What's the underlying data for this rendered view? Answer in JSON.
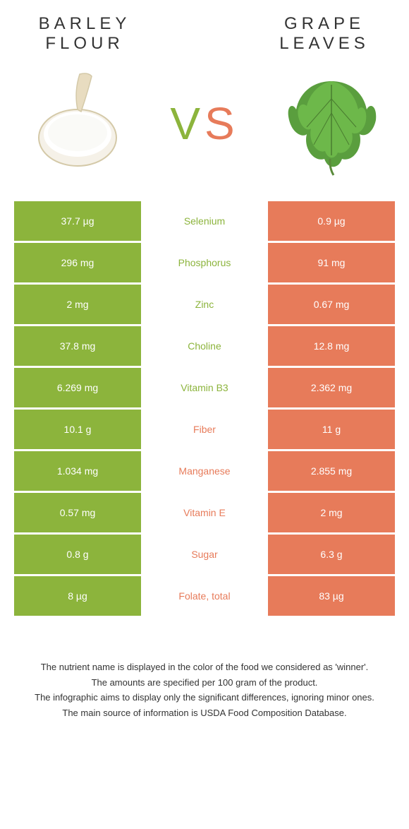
{
  "colors": {
    "left": "#8cb43c",
    "right": "#e77b5a",
    "text_dark": "#333333",
    "white": "#ffffff"
  },
  "header": {
    "left_title_l1": "Barley",
    "left_title_l2": "flour",
    "right_title_l1": "Grape",
    "right_title_l2": "leaves",
    "vs_v": "V",
    "vs_s": "S"
  },
  "rows": [
    {
      "left": "37.7 µg",
      "mid": "Selenium",
      "right": "0.9 µg",
      "winner": "left"
    },
    {
      "left": "296 mg",
      "mid": "Phosphorus",
      "right": "91 mg",
      "winner": "left"
    },
    {
      "left": "2 mg",
      "mid": "Zinc",
      "right": "0.67 mg",
      "winner": "left"
    },
    {
      "left": "37.8 mg",
      "mid": "Choline",
      "right": "12.8 mg",
      "winner": "left"
    },
    {
      "left": "6.269 mg",
      "mid": "Vitamin B3",
      "right": "2.362 mg",
      "winner": "left"
    },
    {
      "left": "10.1 g",
      "mid": "Fiber",
      "right": "11 g",
      "winner": "right"
    },
    {
      "left": "1.034 mg",
      "mid": "Manganese",
      "right": "2.855 mg",
      "winner": "right"
    },
    {
      "left": "0.57 mg",
      "mid": "Vitamin E",
      "right": "2 mg",
      "winner": "right"
    },
    {
      "left": "0.8 g",
      "mid": "Sugar",
      "right": "6.3 g",
      "winner": "right"
    },
    {
      "left": "8 µg",
      "mid": "Folate, total",
      "right": "83 µg",
      "winner": "right"
    }
  ],
  "footnotes": [
    "The nutrient name is displayed in the color of the food we considered as 'winner'.",
    "The amounts are specified per 100 gram of the product.",
    "The infographic aims to display only the significant differences, ignoring minor ones.",
    "The main source of information is USDA Food Composition Database."
  ]
}
